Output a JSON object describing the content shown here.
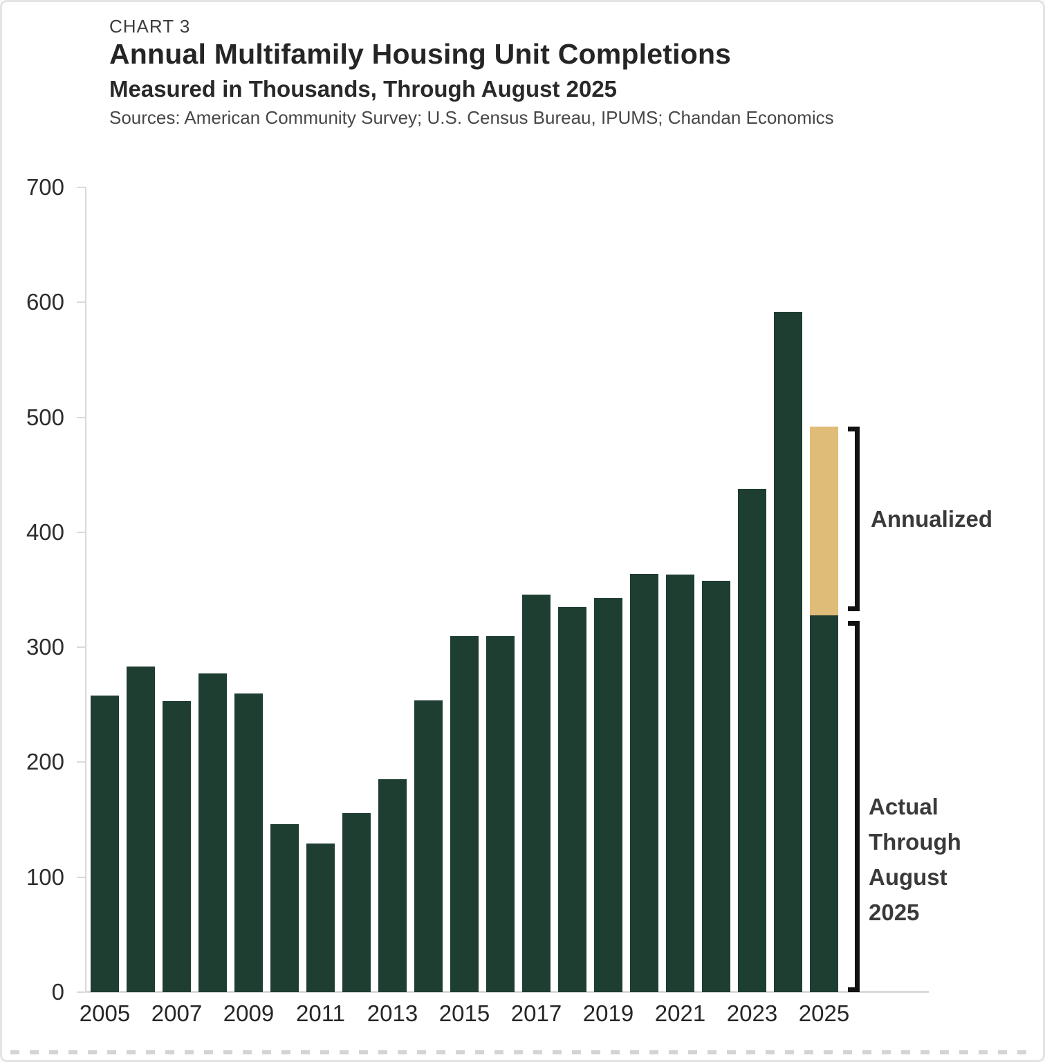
{
  "header": {
    "kicker": "CHART 3",
    "title": "Annual Multifamily Housing Unit Completions",
    "subtitle": "Measured in Thousands, Through August 2025",
    "sources": "Sources: American Community Survey; U.S. Census Bureau, IPUMS; Chandan Economics"
  },
  "annotations": {
    "annualized": "Annualized",
    "actual": "Actual\nThrough\nAugust\n2025"
  },
  "colors": {
    "bar_green": "#1f3e32",
    "bar_tan": "#dfbc77",
    "axis_gray": "#d9d9d9",
    "bracket_black": "#121212"
  },
  "chart_data": {
    "type": "bar",
    "title": "Annual Multifamily Housing Unit Completions",
    "subtitle": "Measured in Thousands, Through August 2025",
    "ylim": [
      0,
      700
    ],
    "yticks": [
      0,
      100,
      200,
      300,
      400,
      500,
      600,
      700
    ],
    "grid": "off",
    "categories": [
      2005,
      2006,
      2007,
      2008,
      2009,
      2010,
      2011,
      2012,
      2013,
      2014,
      2015,
      2016,
      2017,
      2018,
      2019,
      2020,
      2021,
      2022,
      2023,
      2024,
      2025
    ],
    "x_tick_labels": [
      "2005",
      "2007",
      "2009",
      "2011",
      "2013",
      "2015",
      "2017",
      "2019",
      "2021",
      "2023",
      "2025"
    ],
    "series": [
      {
        "name": "Actual",
        "color": "#1f3e32",
        "values": [
          258,
          283,
          253,
          277,
          260,
          146,
          129,
          156,
          185,
          254,
          310,
          310,
          346,
          335,
          343,
          364,
          363,
          358,
          438,
          592,
          328
        ]
      },
      {
        "name": "Annualized (2025 stacked increment)",
        "color": "#dfbc77",
        "values": [
          0,
          0,
          0,
          0,
          0,
          0,
          0,
          0,
          0,
          0,
          0,
          0,
          0,
          0,
          0,
          0,
          0,
          0,
          0,
          0,
          164
        ]
      }
    ],
    "annualized_2025_total": 492,
    "actual_2025_through_august": 328,
    "annotations": [
      {
        "label": "Annualized",
        "applies_to": "2025 tan segment, 328 to 492"
      },
      {
        "label": "Actual Through August 2025",
        "applies_to": "2025 green segment, 0 to 328"
      }
    ]
  }
}
